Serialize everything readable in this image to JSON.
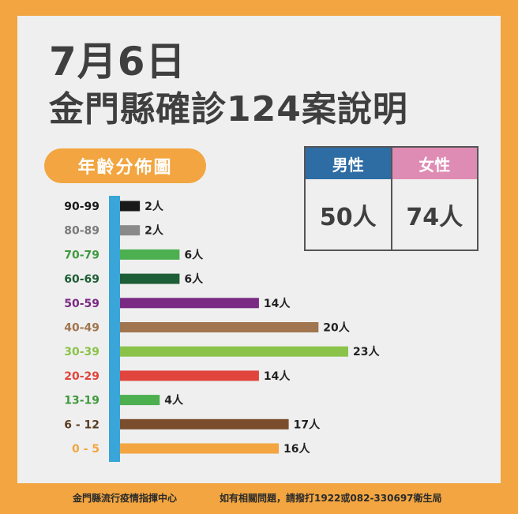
{
  "title_date": "7月6日",
  "title_main": "金門縣確診124案說明",
  "section_label": "年齡分佈圖",
  "gender": {
    "male_label": "男性",
    "female_label": "女性",
    "male_value": "50人",
    "female_value": "74人",
    "male_color": "#2e6da4",
    "female_color": "#de8cb3"
  },
  "footer": {
    "left": "金門縣流行疫情指揮中心",
    "right": "如有相關問題，請撥打1922或082-330697衛生局"
  },
  "chart_data": {
    "type": "bar",
    "orientation": "horizontal",
    "unit_suffix": "人",
    "axis_color": "#3aa5d8",
    "categories": [
      "90-99",
      "80-89",
      "70-79",
      "60-69",
      "50-59",
      "40-49",
      "30-39",
      "20-29",
      "13-19",
      "6-12",
      "0-5"
    ],
    "category_labels": [
      "90-99",
      "80-89",
      "70-79",
      "60-69",
      "50-59",
      "40-49",
      "30-39",
      "20-29",
      "13-19",
      "6 - 12",
      "0  -  5"
    ],
    "values": [
      2,
      2,
      6,
      6,
      14,
      20,
      23,
      14,
      4,
      17,
      16
    ],
    "value_labels": [
      "2人",
      "2人",
      "6人",
      "6人",
      "14人",
      "20人",
      "23人",
      "14人",
      "4人",
      "17人",
      "16人"
    ],
    "colors": [
      "#1a1a1a",
      "#8a8a8a",
      "#4caf50",
      "#1e5e36",
      "#7a2a83",
      "#a0754f",
      "#8bc34a",
      "#e0443c",
      "#4caf50",
      "#7a4e2d",
      "#f2a540"
    ],
    "label_colors": [
      "#1a1a1a",
      "#7a7a7a",
      "#3f9a3f",
      "#1e5e36",
      "#7a2a83",
      "#a0754f",
      "#8bc34a",
      "#e0443c",
      "#3f9a3f",
      "#5a3d22",
      "#f2a540"
    ]
  }
}
